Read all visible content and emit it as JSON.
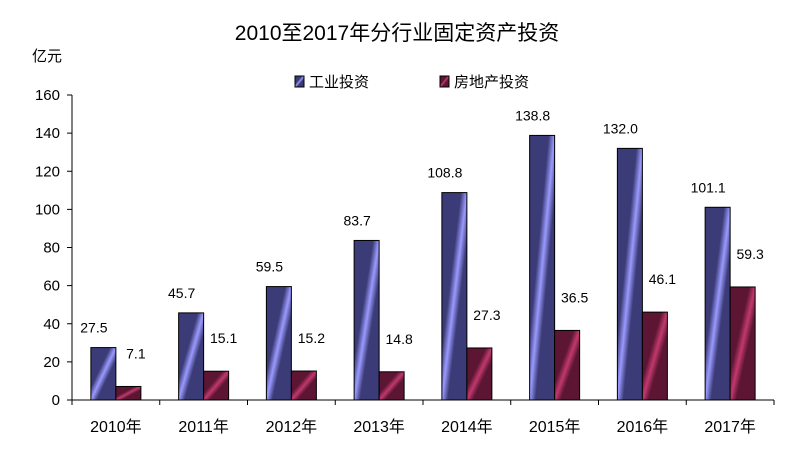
{
  "chart_data": {
    "type": "bar",
    "title": "2010至2017年分行业固定资产投资",
    "ylabel": "亿元",
    "xlabel": "",
    "ylim": [
      0,
      160
    ],
    "yticks": [
      0,
      20,
      40,
      60,
      80,
      100,
      120,
      140,
      160
    ],
    "grid": false,
    "legend_position": "top-center",
    "categories": [
      "2010年",
      "2011年",
      "2012年",
      "2013年",
      "2014年",
      "2015年",
      "2016年",
      "2017年"
    ],
    "series": [
      {
        "name": "工业投资",
        "color": "#3b3b77",
        "highlight": "#9a9aff",
        "values": [
          27.5,
          45.7,
          59.5,
          83.7,
          108.8,
          138.8,
          132.0,
          101.1
        ],
        "labels": [
          "27.5",
          "45.7",
          "59.5",
          "83.7",
          "108.8",
          "138.8",
          "132.0",
          "101.1"
        ]
      },
      {
        "name": "房地产投资",
        "color": "#5c1633",
        "highlight": "#c2386e",
        "values": [
          7.1,
          15.1,
          15.2,
          14.8,
          27.3,
          36.5,
          46.1,
          59.3
        ],
        "labels": [
          "7.1",
          "15.1",
          "15.2",
          "14.8",
          "27.3",
          "36.5",
          "46.1",
          "59.3"
        ]
      }
    ]
  }
}
